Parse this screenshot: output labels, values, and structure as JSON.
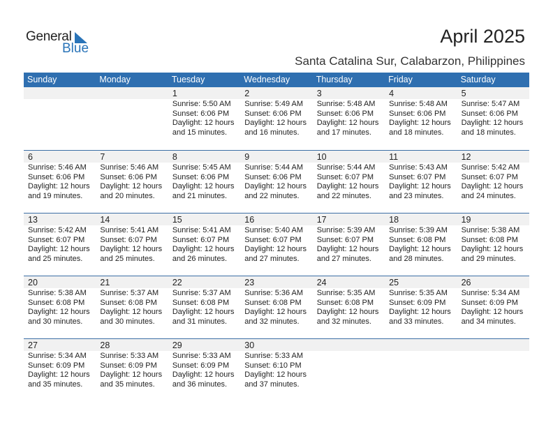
{
  "logo": {
    "word1": "General",
    "word2": "Blue"
  },
  "title": "April 2025",
  "subtitle": "Santa Catalina Sur, Calabarzon, Philippines",
  "colors": {
    "header": "#2f6fb0",
    "band": "#f1f1f1",
    "brand": "#2a74b8"
  },
  "weekdays": [
    "Sunday",
    "Monday",
    "Tuesday",
    "Wednesday",
    "Thursday",
    "Friday",
    "Saturday"
  ],
  "first_weekday_index": 2,
  "days": [
    {
      "day": "1",
      "sunrise": "Sunrise: 5:50 AM",
      "sunset": "Sunset: 6:06 PM",
      "daylight": "Daylight: 12 hours",
      "minutes": "and 15 minutes."
    },
    {
      "day": "2",
      "sunrise": "Sunrise: 5:49 AM",
      "sunset": "Sunset: 6:06 PM",
      "daylight": "Daylight: 12 hours",
      "minutes": "and 16 minutes."
    },
    {
      "day": "3",
      "sunrise": "Sunrise: 5:48 AM",
      "sunset": "Sunset: 6:06 PM",
      "daylight": "Daylight: 12 hours",
      "minutes": "and 17 minutes."
    },
    {
      "day": "4",
      "sunrise": "Sunrise: 5:48 AM",
      "sunset": "Sunset: 6:06 PM",
      "daylight": "Daylight: 12 hours",
      "minutes": "and 18 minutes."
    },
    {
      "day": "5",
      "sunrise": "Sunrise: 5:47 AM",
      "sunset": "Sunset: 6:06 PM",
      "daylight": "Daylight: 12 hours",
      "minutes": "and 18 minutes."
    },
    {
      "day": "6",
      "sunrise": "Sunrise: 5:46 AM",
      "sunset": "Sunset: 6:06 PM",
      "daylight": "Daylight: 12 hours",
      "minutes": "and 19 minutes."
    },
    {
      "day": "7",
      "sunrise": "Sunrise: 5:46 AM",
      "sunset": "Sunset: 6:06 PM",
      "daylight": "Daylight: 12 hours",
      "minutes": "and 20 minutes."
    },
    {
      "day": "8",
      "sunrise": "Sunrise: 5:45 AM",
      "sunset": "Sunset: 6:06 PM",
      "daylight": "Daylight: 12 hours",
      "minutes": "and 21 minutes."
    },
    {
      "day": "9",
      "sunrise": "Sunrise: 5:44 AM",
      "sunset": "Sunset: 6:06 PM",
      "daylight": "Daylight: 12 hours",
      "minutes": "and 22 minutes."
    },
    {
      "day": "10",
      "sunrise": "Sunrise: 5:44 AM",
      "sunset": "Sunset: 6:07 PM",
      "daylight": "Daylight: 12 hours",
      "minutes": "and 22 minutes."
    },
    {
      "day": "11",
      "sunrise": "Sunrise: 5:43 AM",
      "sunset": "Sunset: 6:07 PM",
      "daylight": "Daylight: 12 hours",
      "minutes": "and 23 minutes."
    },
    {
      "day": "12",
      "sunrise": "Sunrise: 5:42 AM",
      "sunset": "Sunset: 6:07 PM",
      "daylight": "Daylight: 12 hours",
      "minutes": "and 24 minutes."
    },
    {
      "day": "13",
      "sunrise": "Sunrise: 5:42 AM",
      "sunset": "Sunset: 6:07 PM",
      "daylight": "Daylight: 12 hours",
      "minutes": "and 25 minutes."
    },
    {
      "day": "14",
      "sunrise": "Sunrise: 5:41 AM",
      "sunset": "Sunset: 6:07 PM",
      "daylight": "Daylight: 12 hours",
      "minutes": "and 25 minutes."
    },
    {
      "day": "15",
      "sunrise": "Sunrise: 5:41 AM",
      "sunset": "Sunset: 6:07 PM",
      "daylight": "Daylight: 12 hours",
      "minutes": "and 26 minutes."
    },
    {
      "day": "16",
      "sunrise": "Sunrise: 5:40 AM",
      "sunset": "Sunset: 6:07 PM",
      "daylight": "Daylight: 12 hours",
      "minutes": "and 27 minutes."
    },
    {
      "day": "17",
      "sunrise": "Sunrise: 5:39 AM",
      "sunset": "Sunset: 6:07 PM",
      "daylight": "Daylight: 12 hours",
      "minutes": "and 27 minutes."
    },
    {
      "day": "18",
      "sunrise": "Sunrise: 5:39 AM",
      "sunset": "Sunset: 6:08 PM",
      "daylight": "Daylight: 12 hours",
      "minutes": "and 28 minutes."
    },
    {
      "day": "19",
      "sunrise": "Sunrise: 5:38 AM",
      "sunset": "Sunset: 6:08 PM",
      "daylight": "Daylight: 12 hours",
      "minutes": "and 29 minutes."
    },
    {
      "day": "20",
      "sunrise": "Sunrise: 5:38 AM",
      "sunset": "Sunset: 6:08 PM",
      "daylight": "Daylight: 12 hours",
      "minutes": "and 30 minutes."
    },
    {
      "day": "21",
      "sunrise": "Sunrise: 5:37 AM",
      "sunset": "Sunset: 6:08 PM",
      "daylight": "Daylight: 12 hours",
      "minutes": "and 30 minutes."
    },
    {
      "day": "22",
      "sunrise": "Sunrise: 5:37 AM",
      "sunset": "Sunset: 6:08 PM",
      "daylight": "Daylight: 12 hours",
      "minutes": "and 31 minutes."
    },
    {
      "day": "23",
      "sunrise": "Sunrise: 5:36 AM",
      "sunset": "Sunset: 6:08 PM",
      "daylight": "Daylight: 12 hours",
      "minutes": "and 32 minutes."
    },
    {
      "day": "24",
      "sunrise": "Sunrise: 5:35 AM",
      "sunset": "Sunset: 6:08 PM",
      "daylight": "Daylight: 12 hours",
      "minutes": "and 32 minutes."
    },
    {
      "day": "25",
      "sunrise": "Sunrise: 5:35 AM",
      "sunset": "Sunset: 6:09 PM",
      "daylight": "Daylight: 12 hours",
      "minutes": "and 33 minutes."
    },
    {
      "day": "26",
      "sunrise": "Sunrise: 5:34 AM",
      "sunset": "Sunset: 6:09 PM",
      "daylight": "Daylight: 12 hours",
      "minutes": "and 34 minutes."
    },
    {
      "day": "27",
      "sunrise": "Sunrise: 5:34 AM",
      "sunset": "Sunset: 6:09 PM",
      "daylight": "Daylight: 12 hours",
      "minutes": "and 35 minutes."
    },
    {
      "day": "28",
      "sunrise": "Sunrise: 5:33 AM",
      "sunset": "Sunset: 6:09 PM",
      "daylight": "Daylight: 12 hours",
      "minutes": "and 35 minutes."
    },
    {
      "day": "29",
      "sunrise": "Sunrise: 5:33 AM",
      "sunset": "Sunset: 6:09 PM",
      "daylight": "Daylight: 12 hours",
      "minutes": "and 36 minutes."
    },
    {
      "day": "30",
      "sunrise": "Sunrise: 5:33 AM",
      "sunset": "Sunset: 6:10 PM",
      "daylight": "Daylight: 12 hours",
      "minutes": "and 37 minutes."
    }
  ]
}
